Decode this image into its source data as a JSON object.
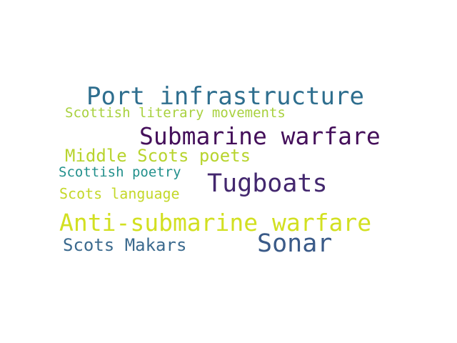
{
  "words": [
    {
      "text": "Port infrastructure",
      "color": "#2e6e8e"
    },
    {
      "text": "Scottish literary movements",
      "color": "#a8d13e"
    },
    {
      "text": "Submarine warfare",
      "color": "#440f5a"
    },
    {
      "text": "Middle Scots poets",
      "color": "#b8d42e"
    },
    {
      "text": "Scottish poetry",
      "color": "#22908c"
    },
    {
      "text": "Tugboats",
      "color": "#43276e"
    },
    {
      "text": "Scots language",
      "color": "#c4d82a"
    },
    {
      "text": "Anti-submarine warfare",
      "color": "#d2e021"
    },
    {
      "text": "Scots Makars",
      "color": "#3b6a8e"
    },
    {
      "text": "Sonar",
      "color": "#3a5a88"
    }
  ]
}
